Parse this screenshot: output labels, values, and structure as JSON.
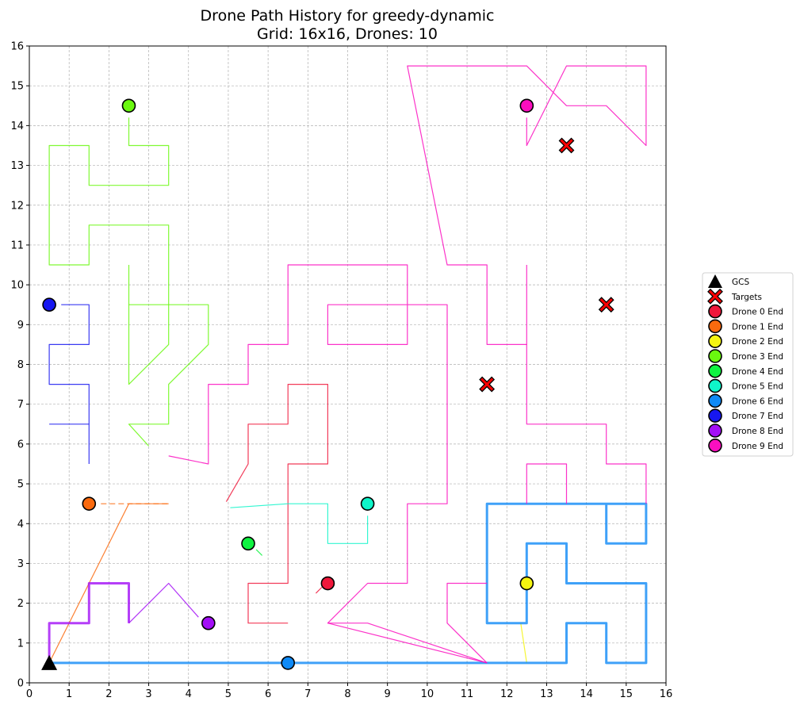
{
  "chart_data": {
    "type": "line",
    "title": "Drone Path History for greedy-dynamic",
    "subtitle": "Grid: 16x16, Drones: 10",
    "xlim": [
      0,
      16
    ],
    "ylim": [
      0,
      16
    ],
    "xticks": [
      0,
      1,
      2,
      3,
      4,
      5,
      6,
      7,
      8,
      9,
      10,
      11,
      12,
      13,
      14,
      15,
      16
    ],
    "yticks": [
      0,
      1,
      2,
      3,
      4,
      5,
      6,
      7,
      8,
      9,
      10,
      11,
      12,
      13,
      14,
      15,
      16
    ],
    "grid": true,
    "legend_position": "right",
    "gcs": {
      "label": "GCS",
      "x": 0.5,
      "y": 0.5
    },
    "targets": {
      "label": "Targets",
      "points": [
        [
          13.5,
          13.5
        ],
        [
          14.5,
          9.5
        ],
        [
          11.5,
          7.5
        ]
      ]
    },
    "series": [
      {
        "name": "Drone 0 End",
        "color": "#f0173b",
        "end": [
          7.5,
          2.5
        ],
        "paths": [
          [
            [
              7.2,
              2.25
            ],
            [
              7.35,
              2.4
            ]
          ],
          [
            [
              6.5,
              1.5
            ],
            [
              5.5,
              1.5
            ],
            [
              5.5,
              2.5
            ],
            [
              6.5,
              2.5
            ],
            [
              6.5,
              5.5
            ],
            [
              7.5,
              5.5
            ],
            [
              7.5,
              7.5
            ],
            [
              6.5,
              7.5
            ],
            [
              6.5,
              6.5
            ],
            [
              5.5,
              6.5
            ],
            [
              5.5,
              5.5
            ],
            [
              4.95,
              4.55
            ]
          ]
        ]
      },
      {
        "name": "Drone 1 End",
        "color": "#fb6a0e",
        "end": [
          1.5,
          4.5
        ],
        "paths": [
          [
            [
              0.5,
              0.5
            ],
            [
              2.5,
              4.5
            ],
            [
              3.5,
              4.5
            ]
          ],
          [
            [
              1.8,
              4.5
            ],
            [
              3.5,
              4.5
            ]
          ]
        ]
      },
      {
        "name": "Drone 2 End",
        "color": "#f5f511",
        "end": [
          12.5,
          2.5
        ],
        "paths": [
          [
            [
              12.5,
              0.5
            ],
            [
              12.35,
              1.5
            ]
          ]
        ]
      },
      {
        "name": "Drone 3 End",
        "color": "#6af80f",
        "end": [
          2.5,
          14.5
        ],
        "paths": [
          [
            [
              2.5,
              14.2
            ],
            [
              2.5,
              13.5
            ],
            [
              3.5,
              13.5
            ],
            [
              3.5,
              12.5
            ],
            [
              1.5,
              12.5
            ],
            [
              1.5,
              13.5
            ],
            [
              0.5,
              13.5
            ],
            [
              0.5,
              10.5
            ],
            [
              1.5,
              10.5
            ],
            [
              1.5,
              11.5
            ],
            [
              3.5,
              11.5
            ],
            [
              3.5,
              8.5
            ],
            [
              2.5,
              7.5
            ],
            [
              2.5,
              10.5
            ]
          ],
          [
            [
              2.5,
              9.5
            ],
            [
              4.5,
              9.5
            ],
            [
              4.5,
              8.5
            ],
            [
              3.5,
              7.5
            ],
            [
              3.5,
              6.5
            ],
            [
              2.5,
              6.5
            ],
            [
              3.0,
              5.95
            ]
          ]
        ]
      },
      {
        "name": "Drone 4 End",
        "color": "#0ff341",
        "end": [
          5.5,
          3.5
        ],
        "paths": [
          [
            [
              5.7,
              3.35
            ],
            [
              5.85,
              3.2
            ]
          ]
        ]
      },
      {
        "name": "Drone 5 End",
        "color": "#0ff5c9",
        "end": [
          8.5,
          4.5
        ],
        "paths": [
          [
            [
              8.5,
              4.2
            ],
            [
              8.5,
              3.5
            ],
            [
              7.5,
              3.5
            ],
            [
              7.5,
              4.5
            ],
            [
              6.5,
              4.5
            ],
            [
              5.05,
              4.4
            ]
          ]
        ]
      },
      {
        "name": "Drone 6 End",
        "color": "#0f8af6",
        "end": [
          6.5,
          0.5
        ],
        "paths": [
          [
            [
              0.5,
              0.5
            ],
            [
              13.5,
              0.5
            ],
            [
              13.5,
              1.5
            ],
            [
              14.5,
              1.5
            ],
            [
              14.5,
              0.5
            ],
            [
              15.5,
              0.5
            ],
            [
              15.5,
              2.5
            ],
            [
              13.5,
              2.5
            ],
            [
              13.5,
              3.5
            ],
            [
              12.5,
              3.5
            ],
            [
              12.5,
              1.5
            ],
            [
              11.5,
              1.5
            ],
            [
              11.5,
              4.5
            ],
            [
              15.5,
              4.5
            ],
            [
              15.5,
              3.5
            ],
            [
              14.5,
              3.5
            ],
            [
              14.5,
              4.5
            ]
          ]
        ]
      },
      {
        "name": "Drone 7 End",
        "color": "#1717f0",
        "end": [
          0.5,
          9.5
        ],
        "paths": [
          [
            [
              0.8,
              9.5
            ],
            [
              1.5,
              9.5
            ],
            [
              1.5,
              8.5
            ],
            [
              0.5,
              8.5
            ],
            [
              0.5,
              7.5
            ],
            [
              1.5,
              7.5
            ],
            [
              1.5,
              5.5
            ]
          ],
          [
            [
              0.5,
              6.5
            ],
            [
              1.5,
              6.5
            ]
          ]
        ]
      },
      {
        "name": "Drone 8 End",
        "color": "#a30ff6",
        "end": [
          4.5,
          1.5
        ],
        "paths": [
          [
            [
              0.5,
              0.5
            ],
            [
              0.5,
              1.5
            ],
            [
              1.5,
              1.5
            ],
            [
              1.5,
              2.5
            ],
            [
              2.5,
              2.5
            ],
            [
              2.5,
              1.5
            ]
          ],
          [
            [
              4.25,
              1.65
            ],
            [
              3.5,
              2.5
            ],
            [
              2.5,
              1.5
            ]
          ]
        ]
      },
      {
        "name": "Drone 9 End",
        "color": "#fb0fbf",
        "end": [
          12.5,
          14.5
        ],
        "paths": [
          [
            [
              12.5,
              14.2
            ],
            [
              12.5,
              13.5
            ],
            [
              13.5,
              15.5
            ],
            [
              15.5,
              15.5
            ],
            [
              15.5,
              13.5
            ],
            [
              14.5,
              14.5
            ],
            [
              13.5,
              14.5
            ],
            [
              12.5,
              15.5
            ],
            [
              9.5,
              15.5
            ],
            [
              10.5,
              10.5
            ],
            [
              11.5,
              10.5
            ],
            [
              11.5,
              8.5
            ],
            [
              12.5,
              8.5
            ],
            [
              12.5,
              10.5
            ]
          ],
          [
            [
              12.5,
              8.5
            ],
            [
              12.5,
              6.5
            ],
            [
              14.5,
              6.5
            ],
            [
              14.5,
              5.5
            ],
            [
              15.5,
              5.5
            ],
            [
              15.5,
              4.5
            ]
          ],
          [
            [
              13.5,
              4.5
            ],
            [
              13.5,
              5.5
            ],
            [
              12.5,
              5.5
            ],
            [
              12.5,
              4.5
            ]
          ],
          [
            [
              11.5,
              0.5
            ],
            [
              7.5,
              1.5
            ],
            [
              8.5,
              2.5
            ],
            [
              9.5,
              2.5
            ],
            [
              9.5,
              4.5
            ],
            [
              10.5,
              4.5
            ],
            [
              10.5,
              9.5
            ],
            [
              7.5,
              9.5
            ],
            [
              7.5,
              8.5
            ],
            [
              9.5,
              8.5
            ],
            [
              9.5,
              10.5
            ],
            [
              6.5,
              10.5
            ],
            [
              6.5,
              8.5
            ],
            [
              5.5,
              8.5
            ],
            [
              5.5,
              7.5
            ],
            [
              4.5,
              7.5
            ],
            [
              4.5,
              5.5
            ],
            [
              3.5,
              5.7
            ]
          ],
          [
            [
              11.5,
              0.5
            ],
            [
              8.5,
              1.5
            ],
            [
              7.5,
              1.5
            ]
          ],
          [
            [
              11.5,
              0.5
            ],
            [
              10.5,
              1.5
            ],
            [
              10.5,
              2.5
            ],
            [
              11.5,
              2.5
            ]
          ]
        ]
      }
    ]
  }
}
